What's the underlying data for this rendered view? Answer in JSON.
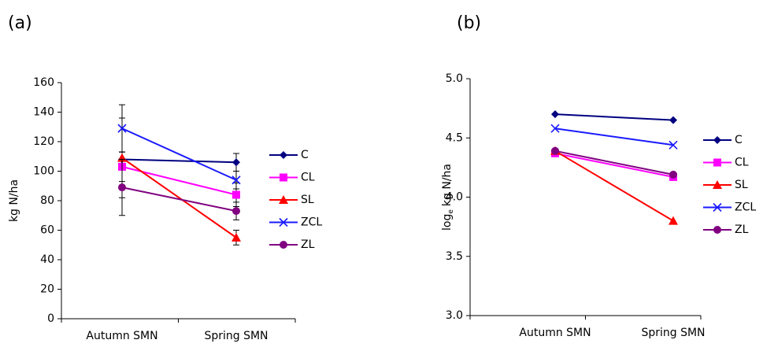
{
  "chart_data": [
    {
      "type": "line",
      "panel_label": "(a)",
      "y_label": "kg N/ha",
      "categories": [
        "Autumn SMN",
        "Spring SMN"
      ],
      "ylim": [
        0,
        160
      ],
      "yticks": [
        0,
        20,
        40,
        60,
        80,
        100,
        120,
        140,
        160
      ],
      "series": [
        {
          "name": "C",
          "color": "#000080",
          "marker": "diamond",
          "values": [
            108,
            106
          ],
          "errors": [
            5,
            6
          ]
        },
        {
          "name": "CL",
          "color": "#ff00ff",
          "marker": "square",
          "values": [
            103,
            84
          ],
          "errors": [
            10,
            8
          ]
        },
        {
          "name": "SL",
          "color": "#ff0000",
          "marker": "triangle",
          "values": [
            109,
            55
          ],
          "errors": [
            27,
            5
          ]
        },
        {
          "name": "ZCL",
          "color": "#1a1aff",
          "marker": "x",
          "values": [
            129,
            94
          ],
          "errors": [
            16,
            6
          ]
        },
        {
          "name": "ZL",
          "color": "#800080",
          "marker": "circle",
          "values": [
            89,
            73
          ],
          "errors": [
            19,
            6
          ]
        }
      ]
    },
    {
      "type": "line",
      "panel_label": "(b)",
      "y_label": {
        "base": "log",
        "sub": "e",
        "rest": "kg N/ha"
      },
      "categories": [
        "Autumn SMN",
        "Spring SMN"
      ],
      "ylim": [
        3,
        5
      ],
      "yticks": [
        {
          "value": 3,
          "label": "3.0"
        },
        3.5,
        {
          "value": 4,
          "label": "4.0"
        },
        4.5,
        {
          "value": 5,
          "label": "5.0"
        }
      ],
      "series": [
        {
          "name": "C",
          "color": "#000080",
          "marker": "diamond",
          "values": [
            4.7,
            4.65
          ]
        },
        {
          "name": "CL",
          "color": "#ff00ff",
          "marker": "square",
          "values": [
            4.37,
            4.17
          ]
        },
        {
          "name": "SL",
          "color": "#ff0000",
          "marker": "triangle",
          "values": [
            4.39,
            3.8
          ]
        },
        {
          "name": "ZCL",
          "color": "#1a1aff",
          "marker": "x",
          "values": [
            4.58,
            4.44
          ]
        },
        {
          "name": "ZL",
          "color": "#800080",
          "marker": "circle",
          "values": [
            4.39,
            4.19
          ]
        }
      ]
    }
  ]
}
